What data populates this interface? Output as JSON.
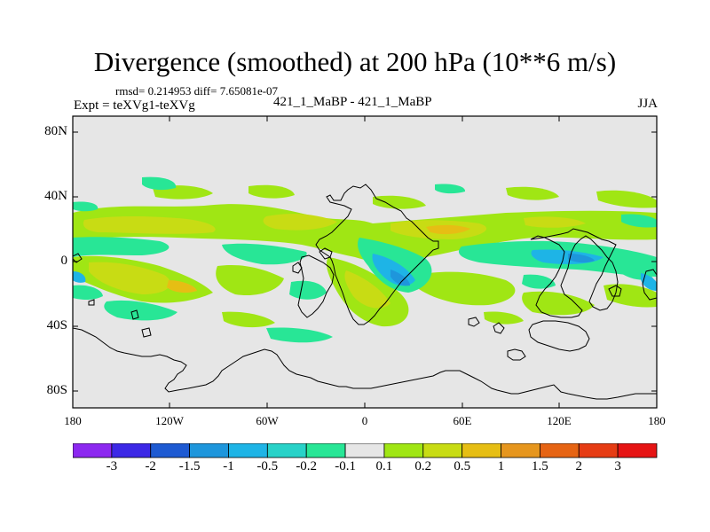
{
  "figure": {
    "title": "Divergence (smoothed) at 200 hPa (10**6 m/s)",
    "stats": "rmsd= 0.214953 diff= 7.65081e-07",
    "experiment": "Expt = teXVg1-teXVg",
    "runs": "421_1_MaBP - 421_1_MaBP",
    "season": "JJA"
  },
  "axes": {
    "y_ticks": [
      "80N",
      "40N",
      "0",
      "40S",
      "80S"
    ],
    "x_ticks": [
      "180",
      "120W",
      "60W",
      "0",
      "60E",
      "120E",
      "180"
    ]
  },
  "colorbar": {
    "labels": [
      "-3",
      "-2",
      "-1.5",
      "-1",
      "-0.5",
      "-0.2",
      "-0.1",
      "0.1",
      "0.2",
      "0.5",
      "1",
      "1.5",
      "2",
      "3"
    ],
    "colors": [
      "#8c28f0",
      "#3c28e6",
      "#1e5ad2",
      "#1e96dc",
      "#1eb4e6",
      "#28d2c8",
      "#28e696",
      "#e6e6e6",
      "#a0e614",
      "#c8dc14",
      "#e6be14",
      "#e6961e",
      "#e66414",
      "#e63c14",
      "#e61414"
    ]
  },
  "map": {
    "background_color": "#e6e6e6",
    "coastline_color": "#000000",
    "lon_range": [
      -180,
      180
    ],
    "lat_range": [
      -90,
      90
    ]
  }
}
